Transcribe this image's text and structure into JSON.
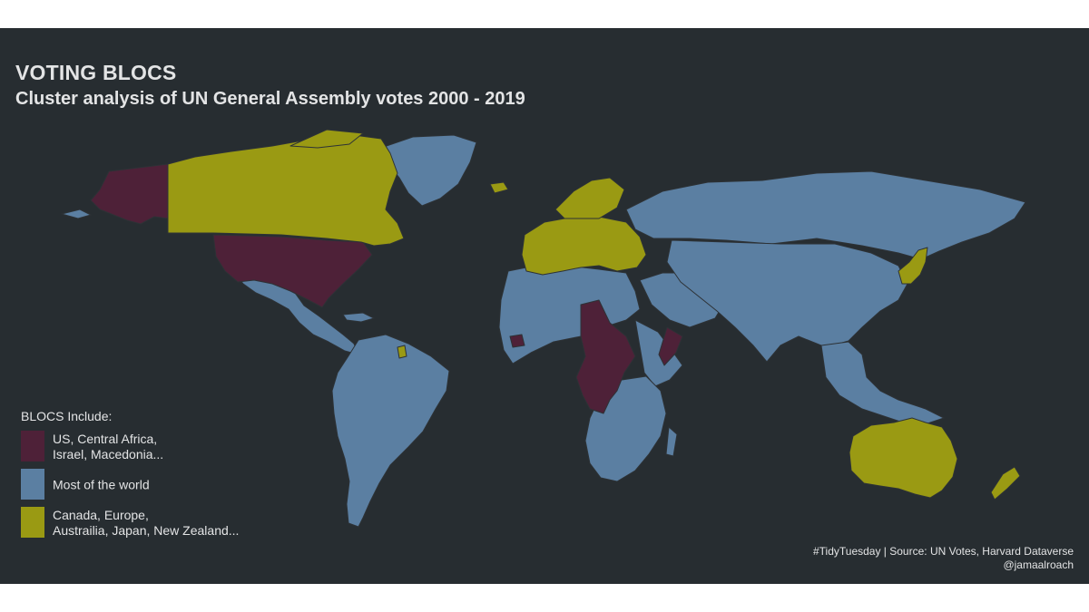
{
  "title": "VOTING BLOCS",
  "subtitle": "Cluster analysis of UN General Assembly votes 2000 - 2019",
  "colors": {
    "background": "#272d31",
    "text": "#e3e4e5",
    "border": "#2d3236",
    "bloc_1": "#4e2138",
    "bloc_2": "#5b7fa2",
    "bloc_3": "#9a9a13"
  },
  "legend": {
    "title": "BLOCS Include:",
    "items": [
      {
        "label": "US, Central Africa,\n Israel, Macedonia...",
        "color": "#4e2138"
      },
      {
        "label": " Most of the world",
        "color": "#5b7fa2"
      },
      {
        "label": "Canada, Europe,\nAustrailia, Japan, New Zealand...",
        "color": "#9a9a13"
      }
    ]
  },
  "caption": {
    "line1": "#TidyTuesday | Source: UN Votes, Harvard Dataverse",
    "line2": "@jamaalroach"
  }
}
